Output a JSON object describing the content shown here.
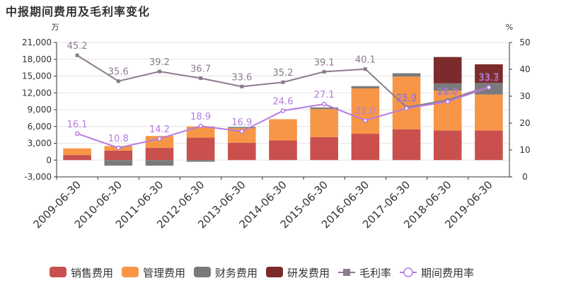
{
  "title": "中报期间费用及毛利率变化",
  "chart_data": {
    "type": "bar",
    "title": "中报期间费用及毛利率变化",
    "left_unit": "万",
    "right_unit": "%",
    "categories": [
      "2009-06-30",
      "2010-06-30",
      "2011-06-30",
      "2012-06-30",
      "2013-06-30",
      "2014-06-30",
      "2015-06-30",
      "2016-06-30",
      "2017-06-30",
      "2018-06-30",
      "2019-06-30"
    ],
    "left_axis": {
      "min": -3000,
      "max": 21000,
      "step": 3000,
      "ticks": [
        "-3,000",
        "0",
        "3,000",
        "6,000",
        "9,000",
        "12,000",
        "15,000",
        "18,000",
        "21,000"
      ]
    },
    "right_axis": {
      "min": 0,
      "max": 50,
      "step": 10,
      "ticks": [
        "0",
        "10",
        "20",
        "30",
        "40",
        "50"
      ]
    },
    "series": [
      {
        "name": "销售费用",
        "kind": "bar",
        "color": "#c9504d",
        "values": [
          900,
          1700,
          2200,
          4000,
          3100,
          3500,
          4100,
          4700,
          5500,
          5300,
          5300
        ]
      },
      {
        "name": "管理费用",
        "kind": "bar",
        "color": "#f79646",
        "values": [
          1200,
          800,
          2100,
          2000,
          2600,
          3800,
          5000,
          8100,
          9400,
          7100,
          6400
        ]
      },
      {
        "name": "财务费用",
        "kind": "bar",
        "color": "#7a7a7a",
        "values": [
          0,
          -1000,
          -1000,
          -300,
          200,
          0,
          300,
          400,
          600,
          1300,
          2100
        ]
      },
      {
        "name": "研发费用",
        "kind": "bar",
        "color": "#7b2b2b",
        "values": [
          0,
          0,
          0,
          0,
          0,
          0,
          0,
          0,
          0,
          4700,
          3300
        ]
      },
      {
        "name": "毛利率",
        "kind": "line",
        "color": "#8c7b8e",
        "marker": "square",
        "values": [
          45.2,
          35.6,
          39.2,
          36.7,
          33.6,
          35.2,
          39.1,
          40.1,
          25.9,
          28.6,
          33.7
        ]
      },
      {
        "name": "期间费用率",
        "kind": "line",
        "color": "#b57be0",
        "marker": "circle",
        "values": [
          16.1,
          10.8,
          14.2,
          18.9,
          16.9,
          24.6,
          27.1,
          21.0,
          25.5,
          28.0,
          33.3
        ]
      }
    ],
    "line_labels": {
      "毛利率": [
        "45.2",
        "35.6",
        "39.2",
        "36.7",
        "33.6",
        "35.2",
        "39.1",
        "40.1",
        "25.9",
        "28.6",
        "33.7"
      ],
      "期间费用率": [
        "16.1",
        "10.8",
        "14.2",
        "18.9",
        "16.9",
        "24.6",
        "27.1",
        "21.0",
        "25.5",
        "28.0",
        "33.3"
      ]
    },
    "legend_position": "bottom",
    "grid": "horizontal"
  }
}
